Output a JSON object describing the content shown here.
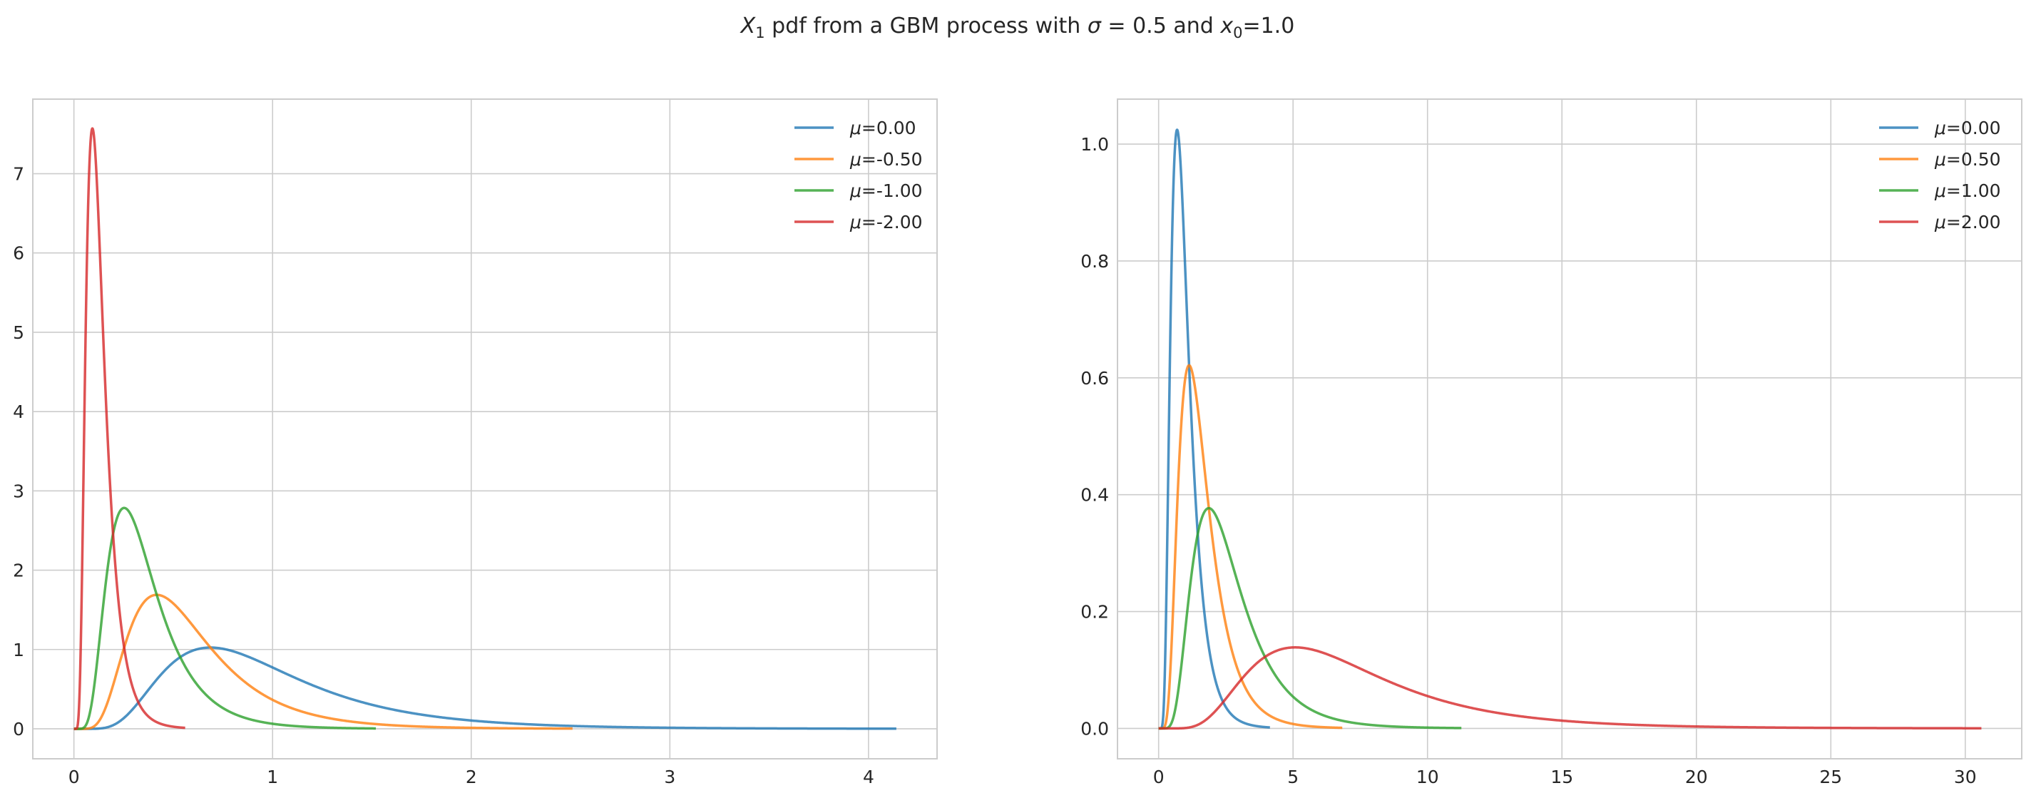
{
  "title": {
    "main": "X",
    "sub": "1",
    "rest": " pdf from a GBM process with ",
    "sigma_sym": "σ",
    "sigma_val": " = 0.5 and ",
    "x_sym": "x",
    "x_sub": "0",
    "x_val": "=1.0"
  },
  "colors": {
    "blue": "#1f77b4",
    "orange": "#ff7f0e",
    "green": "#2ca02c",
    "red": "#d62728",
    "grid": "#cccccc",
    "spine": "#cccccc"
  },
  "chart_data": [
    {
      "type": "line",
      "x0": 1.0,
      "sigma": 0.5,
      "xlim": [
        -0.207,
        4.345
      ],
      "ylim": [
        -0.378,
        7.94
      ],
      "xticks": [
        0,
        1,
        2,
        3,
        4
      ],
      "yticks": [
        0,
        1,
        2,
        3,
        4,
        5,
        6,
        7
      ],
      "grid": true,
      "legend_position": "top-right",
      "series": [
        {
          "name": "μ=0.00",
          "label_sym": "μ",
          "label_val": "=0.00",
          "mu": 0.0,
          "color": "#1f77b4",
          "x_end": 4.14
        },
        {
          "name": "μ=-0.50",
          "label_sym": "μ",
          "label_val": "=-0.50",
          "mu": -0.5,
          "color": "#ff7f0e",
          "x_end": 2.51
        },
        {
          "name": "μ=-1.00",
          "label_sym": "μ",
          "label_val": "=-1.00",
          "mu": -1.0,
          "color": "#2ca02c",
          "x_end": 1.52
        },
        {
          "name": "μ=-2.00",
          "label_sym": "μ",
          "label_val": "=-2.00",
          "mu": -2.0,
          "color": "#d62728",
          "x_end": 0.56
        }
      ]
    },
    {
      "type": "line",
      "x0": 1.0,
      "sigma": 0.5,
      "xlim": [
        -1.53,
        32.1
      ],
      "ylim": [
        -0.052,
        1.077
      ],
      "xticks": [
        0,
        5,
        10,
        15,
        20,
        25,
        30
      ],
      "yticks": [
        0.0,
        0.2,
        0.4,
        0.6,
        0.8,
        1.0
      ],
      "ytick_labels": [
        "0.0",
        "0.2",
        "0.4",
        "0.6",
        "0.8",
        "1.0"
      ],
      "grid": true,
      "legend_position": "top-right",
      "series": [
        {
          "name": "μ=0.00",
          "label_sym": "μ",
          "label_val": "=0.00",
          "mu": 0.0,
          "color": "#1f77b4",
          "x_end": 4.14
        },
        {
          "name": "μ=0.50",
          "label_sym": "μ",
          "label_val": "=0.50",
          "mu": 0.5,
          "color": "#ff7f0e",
          "x_end": 6.83
        },
        {
          "name": "μ=1.00",
          "label_sym": "μ",
          "label_val": "=1.00",
          "mu": 1.0,
          "color": "#2ca02c",
          "x_end": 11.26
        },
        {
          "name": "μ=2.00",
          "label_sym": "μ",
          "label_val": "=2.00",
          "mu": 2.0,
          "color": "#d62728",
          "x_end": 30.6
        }
      ]
    }
  ]
}
